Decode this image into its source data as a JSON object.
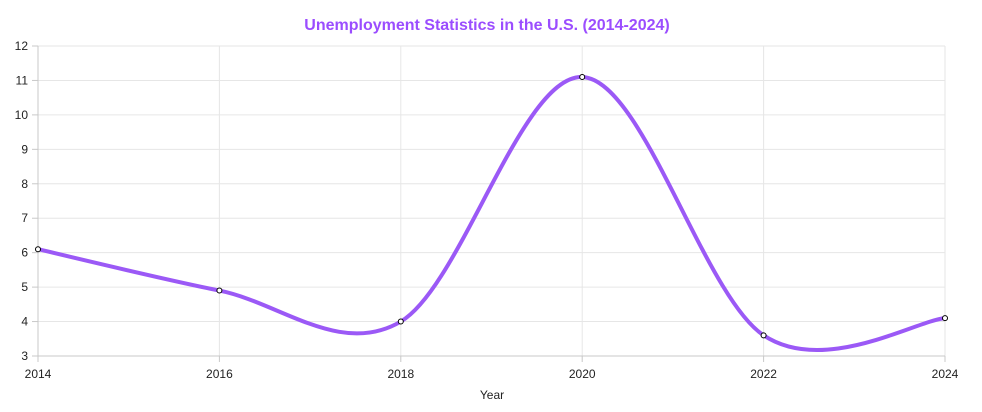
{
  "chart_data": {
    "type": "line",
    "title": "Unemployment Statistics in the U.S. (2014-2024)",
    "xlabel": "Year",
    "ylabel": "",
    "x": [
      "2014",
      "2016",
      "2018",
      "2020",
      "2022",
      "2024"
    ],
    "series": [
      {
        "values": [
          6.1,
          4.9,
          4.0,
          11.1,
          3.6,
          4.1
        ]
      }
    ],
    "ylim": [
      3,
      12
    ],
    "yticks": [
      "3",
      "4",
      "5",
      "6",
      "7",
      "8",
      "9",
      "10",
      "11",
      "12"
    ],
    "grid": true,
    "legend": "none",
    "colors": {
      "title": "#9b4dff",
      "line": "#9b59f6",
      "grid": "#e6e6e6",
      "axis": "#c8c8c8"
    }
  }
}
